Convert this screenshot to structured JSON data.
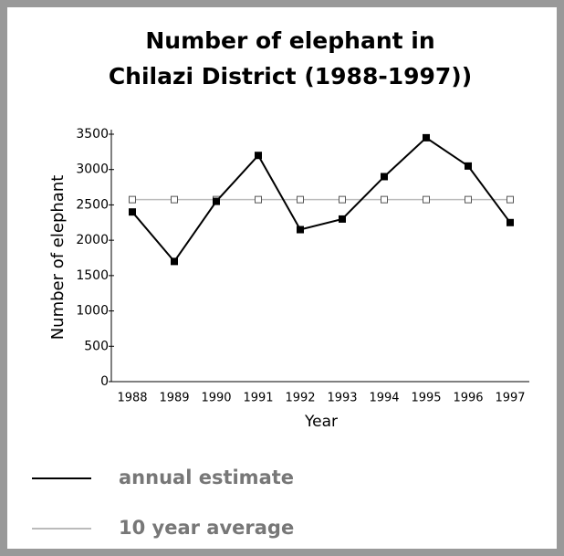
{
  "chart_data": {
    "type": "line",
    "title": [
      "Number of elephant in",
      "Chilazi District (1988-1997))"
    ],
    "x_label": "Year",
    "y_label": "Number of elephant",
    "categories": [
      "1988",
      "1989",
      "1990",
      "1991",
      "1992",
      "1993",
      "1994",
      "1995",
      "1996",
      "1997"
    ],
    "series": [
      {
        "name": "annual estimate",
        "color": "#000000",
        "values": [
          2400,
          1700,
          2550,
          3200,
          2150,
          2300,
          2900,
          3450,
          3050,
          2250
        ]
      },
      {
        "name": "10 year average",
        "color": "#bbbbbb",
        "values": [
          2575,
          2575,
          2575,
          2575,
          2575,
          2575,
          2575,
          2575,
          2575,
          2575
        ]
      }
    ],
    "ylim": [
      0,
      3500
    ],
    "yticks": [
      0,
      500,
      1000,
      1500,
      2000,
      2500,
      3000,
      3500
    ]
  }
}
